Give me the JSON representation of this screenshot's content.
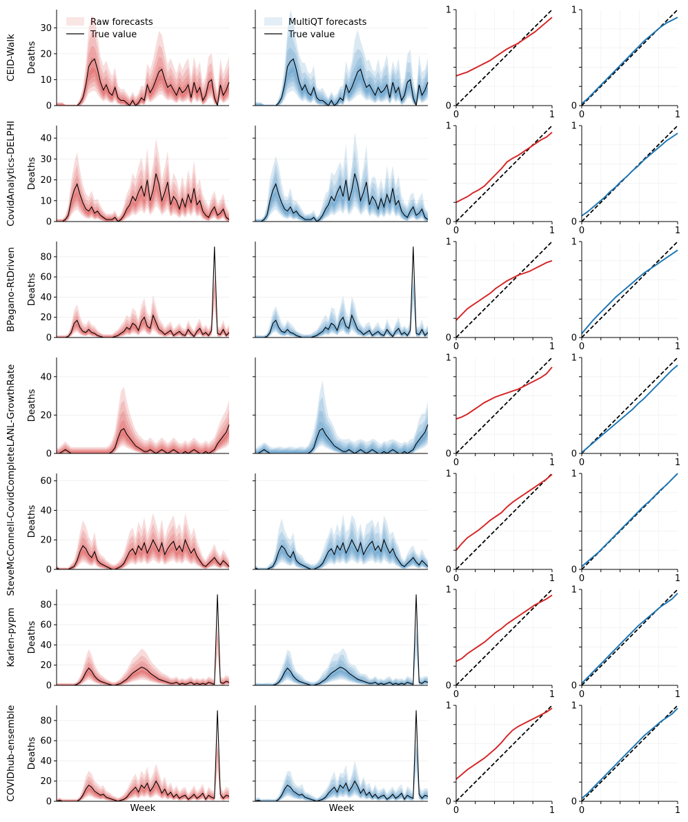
{
  "chart_data": {
    "type": "line",
    "description_free": true,
    "legend": {
      "raw": "Raw forecasts",
      "multiqt": "MultiQT forecasts",
      "truth": "True value"
    },
    "xlabel": "Week",
    "ylabel": "Deaths",
    "colors": {
      "raw": "#d62728",
      "multiqt": "#1f77b4",
      "truth": "#000000",
      "diag": "#000000"
    },
    "calibration_axes": {
      "xlim": [
        0,
        1
      ],
      "ylim": [
        0,
        1
      ],
      "ticks": [
        "0",
        "1"
      ]
    },
    "rows": [
      {
        "model": "CEID-Walk",
        "ylim": [
          0,
          37
        ],
        "yticks": [
          0,
          10,
          20,
          30
        ],
        "truth": [
          0,
          0,
          0,
          0,
          0,
          0,
          0,
          0,
          1,
          3,
          8,
          15,
          17,
          18,
          14,
          9,
          6,
          8,
          5,
          4,
          7,
          3,
          2,
          2,
          1,
          0,
          2,
          0,
          1,
          3,
          2,
          8,
          5,
          7,
          10,
          13,
          14,
          10,
          7,
          8,
          6,
          4,
          7,
          5,
          6,
          8,
          3,
          9,
          5,
          7,
          2,
          4,
          9,
          10,
          3,
          0,
          8,
          4,
          6,
          9
        ],
        "band": [
          1,
          1,
          1,
          0,
          0,
          0,
          0,
          0,
          2,
          5,
          12,
          22,
          26,
          24,
          20,
          14,
          12,
          13,
          11,
          9,
          11,
          6,
          5,
          5,
          4,
          3,
          4,
          3,
          4,
          6,
          6,
          12,
          11,
          14,
          18,
          22,
          20,
          16,
          12,
          14,
          12,
          10,
          13,
          11,
          13,
          14,
          9,
          14,
          11,
          13,
          7,
          9,
          14,
          15,
          9,
          5,
          14,
          10,
          12,
          14
        ],
        "calib_raw": [
          0.31,
          0.33,
          0.35,
          0.38,
          0.41,
          0.44,
          0.47,
          0.51,
          0.55,
          0.59,
          0.62,
          0.65,
          0.69,
          0.73,
          0.77,
          0.82,
          0.87,
          0.92
        ],
        "calib_mqt": [
          0.02,
          0.07,
          0.13,
          0.19,
          0.25,
          0.31,
          0.37,
          0.43,
          0.49,
          0.55,
          0.61,
          0.67,
          0.72,
          0.77,
          0.82,
          0.86,
          0.89,
          0.92
        ]
      },
      {
        "model": "CovidAnalytics-DELPHI",
        "ylim": [
          0,
          46
        ],
        "yticks": [
          0,
          10,
          20,
          30,
          40
        ],
        "truth": [
          0,
          0,
          0,
          1,
          3,
          10,
          15,
          18,
          13,
          9,
          6,
          5,
          7,
          4,
          5,
          3,
          2,
          1,
          1,
          1,
          2,
          0,
          1,
          3,
          6,
          8,
          12,
          10,
          14,
          17,
          12,
          20,
          10,
          15,
          23,
          18,
          10,
          14,
          19,
          8,
          12,
          10,
          6,
          11,
          7,
          13,
          9,
          16,
          8,
          10,
          5,
          3,
          2,
          5,
          7,
          3,
          4,
          6,
          2,
          1
        ],
        "band": [
          1,
          1,
          1,
          2,
          6,
          14,
          20,
          24,
          18,
          13,
          10,
          9,
          11,
          8,
          8,
          6,
          4,
          3,
          3,
          3,
          4,
          2,
          3,
          6,
          10,
          12,
          17,
          15,
          19,
          22,
          17,
          25,
          15,
          20,
          28,
          23,
          15,
          19,
          24,
          13,
          17,
          15,
          11,
          16,
          12,
          18,
          14,
          21,
          13,
          15,
          10,
          8,
          6,
          9,
          11,
          7,
          8,
          10,
          6,
          4
        ],
        "calib_raw": [
          0.2,
          0.23,
          0.26,
          0.3,
          0.33,
          0.37,
          0.43,
          0.49,
          0.55,
          0.62,
          0.66,
          0.69,
          0.73,
          0.77,
          0.81,
          0.85,
          0.88,
          0.93
        ],
        "calib_mqt": [
          0.06,
          0.1,
          0.15,
          0.2,
          0.25,
          0.31,
          0.36,
          0.42,
          0.47,
          0.53,
          0.58,
          0.64,
          0.69,
          0.74,
          0.79,
          0.84,
          0.88,
          0.92
        ]
      },
      {
        "model": "BPagano-RtDriven",
        "ylim": [
          0,
          95
        ],
        "yticks": [
          0,
          20,
          40,
          60,
          80
        ],
        "truth": [
          0,
          0,
          0,
          0,
          1,
          5,
          14,
          17,
          10,
          6,
          5,
          8,
          5,
          4,
          2,
          1,
          0,
          0,
          0,
          0,
          1,
          2,
          4,
          6,
          10,
          8,
          14,
          12,
          7,
          16,
          20,
          11,
          9,
          22,
          15,
          8,
          6,
          3,
          5,
          7,
          2,
          4,
          6,
          3,
          2,
          8,
          4,
          1,
          6,
          9,
          3,
          5,
          2,
          7,
          90,
          4,
          3,
          8,
          2,
          5
        ],
        "band": [
          2,
          2,
          2,
          2,
          3,
          10,
          20,
          24,
          16,
          11,
          10,
          13,
          10,
          9,
          6,
          4,
          3,
          3,
          3,
          3,
          5,
          7,
          10,
          13,
          17,
          15,
          22,
          20,
          14,
          24,
          29,
          19,
          16,
          31,
          23,
          15,
          12,
          8,
          10,
          12,
          7,
          9,
          11,
          8,
          7,
          13,
          9,
          6,
          11,
          14,
          8,
          10,
          7,
          12,
          14,
          9,
          8,
          13,
          7,
          10
        ],
        "calib_raw": [
          0.18,
          0.24,
          0.3,
          0.34,
          0.38,
          0.42,
          0.46,
          0.51,
          0.55,
          0.59,
          0.62,
          0.65,
          0.67,
          0.69,
          0.72,
          0.75,
          0.78,
          0.8
        ],
        "calib_mqt": [
          0.04,
          0.11,
          0.18,
          0.24,
          0.3,
          0.36,
          0.42,
          0.47,
          0.52,
          0.57,
          0.62,
          0.67,
          0.71,
          0.75,
          0.79,
          0.83,
          0.87,
          0.91
        ]
      },
      {
        "model": "LANL-GrowthRate",
        "ylim": [
          0,
          50
        ],
        "yticks": [
          0,
          20,
          40
        ],
        "truth": [
          0,
          0,
          1,
          2,
          1,
          0,
          0,
          0,
          0,
          0,
          0,
          0,
          0,
          0,
          0,
          0,
          0,
          0,
          0,
          1,
          3,
          8,
          12,
          13,
          10,
          8,
          6,
          4,
          3,
          2,
          1,
          1,
          2,
          1,
          0,
          1,
          2,
          1,
          0,
          1,
          2,
          1,
          0,
          0,
          1,
          0,
          1,
          2,
          1,
          0,
          0,
          1,
          0,
          1,
          2,
          5,
          7,
          9,
          11,
          15
        ],
        "band": [
          2,
          3,
          4,
          5,
          4,
          3,
          3,
          3,
          3,
          3,
          3,
          3,
          3,
          3,
          3,
          3,
          3,
          3,
          4,
          6,
          10,
          18,
          26,
          28,
          22,
          17,
          13,
          10,
          8,
          7,
          6,
          6,
          7,
          6,
          5,
          6,
          7,
          6,
          5,
          6,
          7,
          6,
          5,
          5,
          6,
          5,
          6,
          7,
          6,
          5,
          5,
          6,
          5,
          6,
          7,
          10,
          13,
          15,
          17,
          20
        ],
        "calib_raw": [
          0.36,
          0.38,
          0.41,
          0.45,
          0.49,
          0.53,
          0.56,
          0.59,
          0.61,
          0.63,
          0.65,
          0.67,
          0.7,
          0.73,
          0.76,
          0.79,
          0.83,
          0.9
        ],
        "calib_mqt": [
          0.01,
          0.06,
          0.11,
          0.16,
          0.21,
          0.26,
          0.31,
          0.36,
          0.41,
          0.46,
          0.52,
          0.57,
          0.63,
          0.69,
          0.75,
          0.81,
          0.87,
          0.92
        ]
      },
      {
        "model": "SteveMcConnell-CovidComplete",
        "ylim": [
          0,
          65
        ],
        "yticks": [
          0,
          20,
          40,
          60
        ],
        "truth": [
          1,
          0,
          0,
          0,
          0,
          1,
          2,
          6,
          12,
          16,
          14,
          10,
          8,
          12,
          6,
          4,
          3,
          2,
          1,
          0,
          0,
          1,
          2,
          4,
          8,
          12,
          14,
          10,
          16,
          13,
          18,
          11,
          15,
          20,
          16,
          12,
          18,
          10,
          14,
          17,
          19,
          13,
          16,
          12,
          20,
          15,
          11,
          14,
          9,
          6,
          3,
          2,
          4,
          6,
          8,
          5,
          3,
          6,
          4,
          2
        ],
        "band": [
          2,
          1,
          1,
          1,
          1,
          3,
          5,
          11,
          19,
          25,
          22,
          17,
          14,
          19,
          11,
          8,
          7,
          5,
          4,
          3,
          3,
          4,
          6,
          9,
          14,
          19,
          21,
          16,
          24,
          20,
          26,
          18,
          22,
          28,
          23,
          18,
          25,
          16,
          21,
          24,
          27,
          20,
          23,
          18,
          28,
          22,
          17,
          21,
          15,
          11,
          7,
          5,
          8,
          10,
          13,
          9,
          7,
          10,
          8,
          5
        ],
        "calib_raw": [
          0.2,
          0.27,
          0.33,
          0.37,
          0.41,
          0.46,
          0.51,
          0.55,
          0.59,
          0.65,
          0.7,
          0.74,
          0.78,
          0.82,
          0.86,
          0.9,
          0.94,
          0.99
        ],
        "calib_mqt": [
          0.03,
          0.08,
          0.13,
          0.18,
          0.24,
          0.3,
          0.36,
          0.42,
          0.48,
          0.54,
          0.6,
          0.66,
          0.71,
          0.77,
          0.83,
          0.88,
          0.94,
          1.0
        ]
      },
      {
        "model": "Karlen-pypm",
        "ylim": [
          0,
          95
        ],
        "yticks": [
          0,
          20,
          40,
          60,
          80
        ],
        "truth": [
          0,
          0,
          0,
          0,
          0,
          0,
          0,
          1,
          3,
          7,
          13,
          17,
          14,
          9,
          6,
          4,
          3,
          2,
          1,
          0,
          0,
          1,
          2,
          4,
          6,
          9,
          12,
          14,
          16,
          18,
          17,
          15,
          12,
          10,
          8,
          6,
          5,
          4,
          3,
          2,
          2,
          3,
          1,
          2,
          1,
          2,
          3,
          1,
          2,
          1,
          2,
          1,
          3,
          2,
          1,
          90,
          3,
          2,
          4,
          3
        ],
        "band": [
          2,
          2,
          2,
          2,
          2,
          2,
          2,
          3,
          7,
          13,
          21,
          27,
          23,
          16,
          12,
          9,
          7,
          5,
          4,
          3,
          3,
          4,
          6,
          9,
          12,
          16,
          20,
          22,
          24,
          27,
          26,
          23,
          19,
          16,
          14,
          12,
          10,
          9,
          8,
          6,
          6,
          7,
          5,
          6,
          5,
          6,
          7,
          5,
          6,
          5,
          6,
          5,
          7,
          6,
          5,
          8,
          7,
          6,
          8,
          7
        ],
        "calib_raw": [
          0.25,
          0.28,
          0.33,
          0.37,
          0.41,
          0.45,
          0.5,
          0.55,
          0.59,
          0.64,
          0.68,
          0.72,
          0.76,
          0.8,
          0.84,
          0.87,
          0.9,
          0.94
        ],
        "calib_mqt": [
          0.02,
          0.08,
          0.14,
          0.2,
          0.26,
          0.32,
          0.38,
          0.44,
          0.5,
          0.56,
          0.62,
          0.67,
          0.72,
          0.77,
          0.82,
          0.86,
          0.9,
          0.96
        ]
      },
      {
        "model": "COVIDhub-ensemble",
        "ylim": [
          0,
          95
        ],
        "yticks": [
          0,
          20,
          40,
          60,
          80
        ],
        "truth": [
          0,
          1,
          0,
          0,
          0,
          0,
          0,
          0,
          2,
          6,
          12,
          16,
          14,
          10,
          8,
          6,
          7,
          4,
          3,
          2,
          1,
          0,
          1,
          2,
          4,
          8,
          11,
          14,
          9,
          16,
          13,
          18,
          10,
          14,
          20,
          15,
          8,
          12,
          6,
          9,
          4,
          7,
          3,
          5,
          6,
          2,
          4,
          7,
          3,
          5,
          8,
          2,
          6,
          4,
          3,
          90,
          7,
          3,
          6,
          5
        ],
        "band": [
          2,
          3,
          2,
          2,
          2,
          2,
          2,
          2,
          4,
          10,
          18,
          22,
          20,
          15,
          13,
          11,
          12,
          8,
          7,
          5,
          4,
          3,
          4,
          6,
          9,
          13,
          17,
          20,
          15,
          22,
          19,
          25,
          16,
          20,
          27,
          21,
          14,
          18,
          11,
          14,
          9,
          12,
          8,
          10,
          11,
          6,
          9,
          12,
          8,
          10,
          13,
          6,
          11,
          9,
          8,
          12,
          12,
          8,
          11,
          10
        ],
        "calib_raw": [
          0.23,
          0.28,
          0.33,
          0.37,
          0.41,
          0.45,
          0.5,
          0.55,
          0.61,
          0.68,
          0.74,
          0.78,
          0.81,
          0.84,
          0.87,
          0.9,
          0.93,
          0.97
        ],
        "calib_mqt": [
          0.03,
          0.08,
          0.14,
          0.2,
          0.26,
          0.32,
          0.38,
          0.44,
          0.5,
          0.56,
          0.62,
          0.68,
          0.73,
          0.78,
          0.83,
          0.87,
          0.91,
          0.97
        ]
      }
    ]
  }
}
